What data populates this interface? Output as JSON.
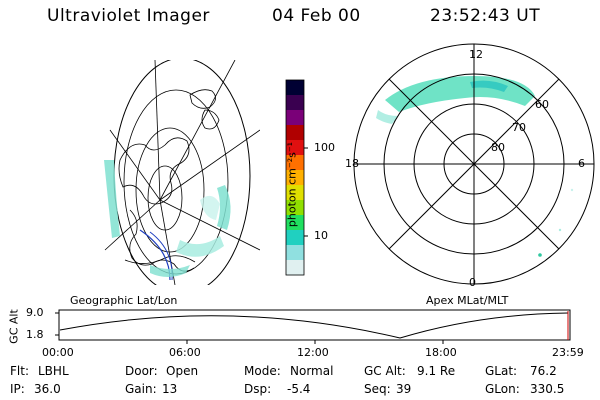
{
  "header": {
    "instrument": "Ultraviolet Imager",
    "date": "04 Feb 00",
    "time": "23:52:43 UT"
  },
  "colorbar": {
    "unit_label": "photon cm⁻²s⁻¹",
    "ticks": [
      "100",
      "10"
    ],
    "colors": [
      "#000033",
      "#3a0050",
      "#7a0078",
      "#b00000",
      "#e01010",
      "#ff7000",
      "#ffb000",
      "#e0e000",
      "#90e000",
      "#20e060",
      "#20d0c0",
      "#90e0e0",
      "#e0f0f0"
    ]
  },
  "geo_map": {
    "label": "Geographic Lat/Lon",
    "aurora_color": "#7fe0d0"
  },
  "polar_plot": {
    "label": "Apex MLat/MLT",
    "mlt_labels": {
      "top": "12",
      "left": "18",
      "right": "6",
      "bottom": "0"
    },
    "lat_labels": [
      "60",
      "70",
      "80"
    ],
    "aurora_color": "#5fe0c0"
  },
  "altitude_plot": {
    "ylabel": "GC Alt",
    "yticks": [
      "9.0",
      "1.8"
    ],
    "xticks": [
      "00:00",
      "06:00",
      "12:00",
      "18:00",
      "23:59"
    ]
  },
  "info_rows": [
    [
      {
        "label": "Flt:",
        "value": "LBHL"
      },
      {
        "label": "Door:",
        "value": "Open"
      },
      {
        "label": "Mode:",
        "value": "Normal"
      },
      {
        "label": "GC Alt:",
        "value": "9.1 Re"
      },
      {
        "label": "GLat:",
        "value": "76.2"
      }
    ],
    [
      {
        "label": "IP:",
        "value": "36.0"
      },
      {
        "label": "Gain:",
        "value": "13"
      },
      {
        "label": "Dsp:",
        "value": "-5.4"
      },
      {
        "label": "Seq:",
        "value": "39"
      },
      {
        "label": "GLon:",
        "value": "330.5"
      }
    ]
  ]
}
